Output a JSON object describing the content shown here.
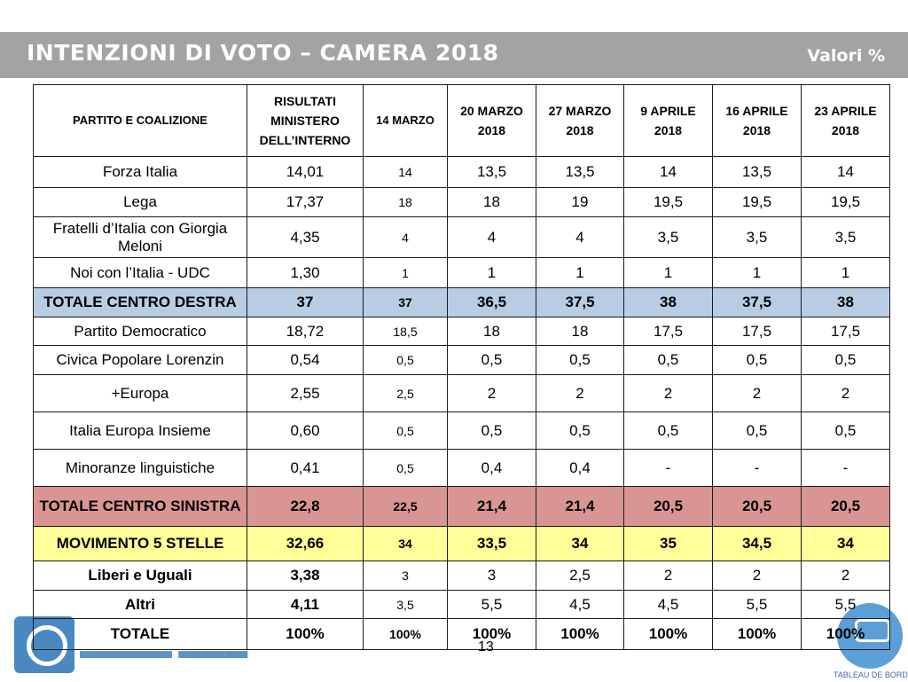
{
  "header": {
    "title": "INTENZIONI DI VOTO – CAMERA 2018",
    "units": "Valori %"
  },
  "table": {
    "columns": [
      "PARTITO E COALIZIONE",
      "RISULTATI MINISTERO DELL’INTERNO",
      "14 MARZO",
      "20 MARZO 2018",
      "27 MARZO 2018",
      "9 APRILE 2018",
      "16 APRILE 2018",
      "23 APRILE 2018"
    ],
    "rows": [
      {
        "party": "Forza Italia",
        "values": [
          "14,01",
          "14",
          "13,5",
          "13,5",
          "14",
          "13,5",
          "14"
        ]
      },
      {
        "party": "Lega",
        "values": [
          "17,37",
          "18",
          "18",
          "19",
          "19,5",
          "19,5",
          "19,5"
        ]
      },
      {
        "party": "Fratelli d’Italia con Giorgia Meloni",
        "values": [
          "4,35",
          "4",
          "4",
          "4",
          "3,5",
          "3,5",
          "3,5"
        ]
      },
      {
        "party": "Noi con l’Italia - UDC",
        "values": [
          "1,30",
          "1",
          "1",
          "1",
          "1",
          "1",
          "1"
        ]
      },
      {
        "party": "TOTALE CENTRO DESTRA",
        "values": [
          "37",
          "37",
          "36,5",
          "37,5",
          "38",
          "37,5",
          "38"
        ]
      },
      {
        "party": "Partito Democratico",
        "values": [
          "18,72",
          "18,5",
          "18",
          "18",
          "17,5",
          "17,5",
          "17,5"
        ]
      },
      {
        "party": "Civica Popolare Lorenzin",
        "values": [
          "0,54",
          "0,5",
          "0,5",
          "0,5",
          "0,5",
          "0,5",
          "0,5"
        ]
      },
      {
        "party": "+Europa",
        "values": [
          "2,55",
          "2,5",
          "2",
          "2",
          "2",
          "2",
          "2"
        ]
      },
      {
        "party": "Italia Europa Insieme",
        "values": [
          "0,60",
          "0,5",
          "0,5",
          "0,5",
          "0,5",
          "0,5",
          "0,5"
        ]
      },
      {
        "party": "Minoranze linguistiche",
        "values": [
          "0,41",
          "0,5",
          "0,4",
          "0,4",
          "-",
          "-",
          "-"
        ]
      },
      {
        "party": "TOTALE CENTRO SINISTRA",
        "values": [
          "22,8",
          "22,5",
          "21,4",
          "21,4",
          "20,5",
          "20,5",
          "20,5"
        ]
      },
      {
        "party": "MOVIMENTO 5 STELLE",
        "values": [
          "32,66",
          "34",
          "33,5",
          "34",
          "35",
          "34,5",
          "34"
        ]
      },
      {
        "party": "Liberi e Uguali",
        "values": [
          "3,38",
          "3",
          "3",
          "2,5",
          "2",
          "2",
          "2"
        ]
      },
      {
        "party": "Altri",
        "values": [
          "4,11",
          "3,5",
          "5,5",
          "4,5",
          "4,5",
          "5,5",
          "5,5"
        ]
      },
      {
        "party": "TOTALE",
        "values": [
          "100%",
          "100%",
          "100%",
          "100%",
          "100%",
          "100%",
          "100%"
        ]
      }
    ]
  },
  "footer": {
    "page_number": "13",
    "logo_caption": "TABLEAU DE BORD"
  },
  "colors": {
    "title_bar": "#a3a3a3",
    "centro_destra": "#b8cce4",
    "centro_sinistra": "#d99594",
    "m5s": "#ffff99"
  }
}
